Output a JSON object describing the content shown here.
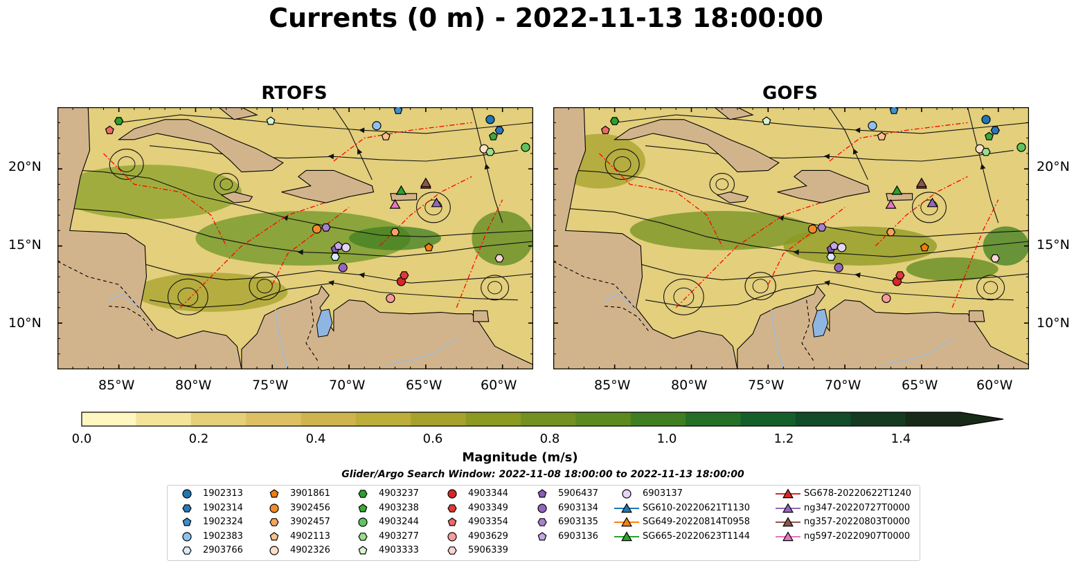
{
  "title": "Currents (0 m) - 2022-11-13 18:00:00",
  "panels": [
    {
      "title": "RTOFS"
    },
    {
      "title": "GOFS"
    }
  ],
  "lon_ticks": [
    "85°W",
    "80°W",
    "75°W",
    "70°W",
    "65°W",
    "60°W"
  ],
  "lat_ticks": [
    "20°N",
    "15°N",
    "10°N"
  ],
  "extent": {
    "lon": [
      -89,
      -58
    ],
    "lat": [
      7,
      24
    ]
  },
  "colorbar": {
    "label": "Magnitude (m/s)",
    "ticks": [
      "0.0",
      "0.2",
      "0.4",
      "0.6",
      "0.8",
      "1.0",
      "1.2",
      "1.4"
    ],
    "range": [
      0,
      1.5
    ],
    "colors": [
      "#fff6c0",
      "#f3e49a",
      "#e6cf79",
      "#dcc063",
      "#cfb44d",
      "#bdae3a",
      "#a6a22b",
      "#8c9a22",
      "#739120",
      "#5c8a1f",
      "#3f7f22",
      "#256f27",
      "#155f2b",
      "#114d28",
      "#143a20",
      "#172a17"
    ]
  },
  "search_window": "Glider/Argo Search Window: 2022-11-08 18:00:00 to 2022-11-13 18:00:00",
  "colors": {
    "land": "#d2b48c",
    "river": "#9dbbd9",
    "eez": "#ff0000"
  },
  "legend": {
    "columns": [
      [
        {
          "label": "1902313",
          "marker": "circle",
          "color": "#1f77b4"
        },
        {
          "label": "1902314",
          "marker": "hexagon",
          "color": "#2878b8"
        },
        {
          "label": "1902324",
          "marker": "pentagon",
          "color": "#3a8fd0"
        },
        {
          "label": "1902383",
          "marker": "circle",
          "color": "#8ec2ee"
        },
        {
          "label": "2903766",
          "marker": "hexagon",
          "color": "#d6ecfb"
        }
      ],
      [
        {
          "label": "3901861",
          "marker": "pentagon",
          "color": "#f07d0c"
        },
        {
          "label": "3902456",
          "marker": "circle",
          "color": "#f28c2a"
        },
        {
          "label": "3902457",
          "marker": "hexagon",
          "color": "#f7a35c"
        },
        {
          "label": "4902113",
          "marker": "pentagon",
          "color": "#fbc08e"
        },
        {
          "label": "4902326",
          "marker": "circle",
          "color": "#fde0c4"
        }
      ],
      [
        {
          "label": "4903237",
          "marker": "hexagon",
          "color": "#2ca02c"
        },
        {
          "label": "4903238",
          "marker": "pentagon",
          "color": "#3aaa3a"
        },
        {
          "label": "4903244",
          "marker": "circle",
          "color": "#5fc45f"
        },
        {
          "label": "4903277",
          "marker": "hexagon",
          "color": "#98df8a"
        },
        {
          "label": "4903333",
          "marker": "pentagon",
          "color": "#d4f5cc"
        }
      ],
      [
        {
          "label": "4903344",
          "marker": "circle",
          "color": "#d62728"
        },
        {
          "label": "4903349",
          "marker": "hexagon",
          "color": "#e0393a"
        },
        {
          "label": "4903354",
          "marker": "pentagon",
          "color": "#ec6a6a"
        },
        {
          "label": "4903629",
          "marker": "circle",
          "color": "#f59c9c"
        },
        {
          "label": "5906339",
          "marker": "hexagon",
          "color": "#fcd4d4"
        }
      ],
      [
        {
          "label": "5906437",
          "marker": "pentagon",
          "color": "#8a5bb8"
        },
        {
          "label": "6903134",
          "marker": "circle",
          "color": "#9467bd"
        },
        {
          "label": "6903135",
          "marker": "hexagon",
          "color": "#a881d0"
        },
        {
          "label": "6903136",
          "marker": "pentagon",
          "color": "#c4a8e6"
        }
      ],
      [
        {
          "label": "6903137",
          "marker": "circle",
          "color": "#e4d4f7"
        },
        {
          "label": "SG610-20220621T1130",
          "marker": "triangle",
          "color": "#1f77b4"
        },
        {
          "label": "SG649-20220814T0958",
          "marker": "triangle",
          "color": "#ff7f0e"
        },
        {
          "label": "SG665-20220623T1144",
          "marker": "triangle",
          "color": "#2ca02c"
        }
      ],
      [
        {
          "label": "SG678-20220622T1240",
          "marker": "triangle",
          "color": "#d62728"
        },
        {
          "label": "ng347-20220727T0000",
          "marker": "triangle",
          "color": "#9467bd"
        },
        {
          "label": "ng357-20220803T0000",
          "marker": "triangle",
          "color": "#8c564b"
        },
        {
          "label": "ng597-20220907T0000",
          "marker": "triangle",
          "color": "#e377c2"
        }
      ]
    ]
  }
}
